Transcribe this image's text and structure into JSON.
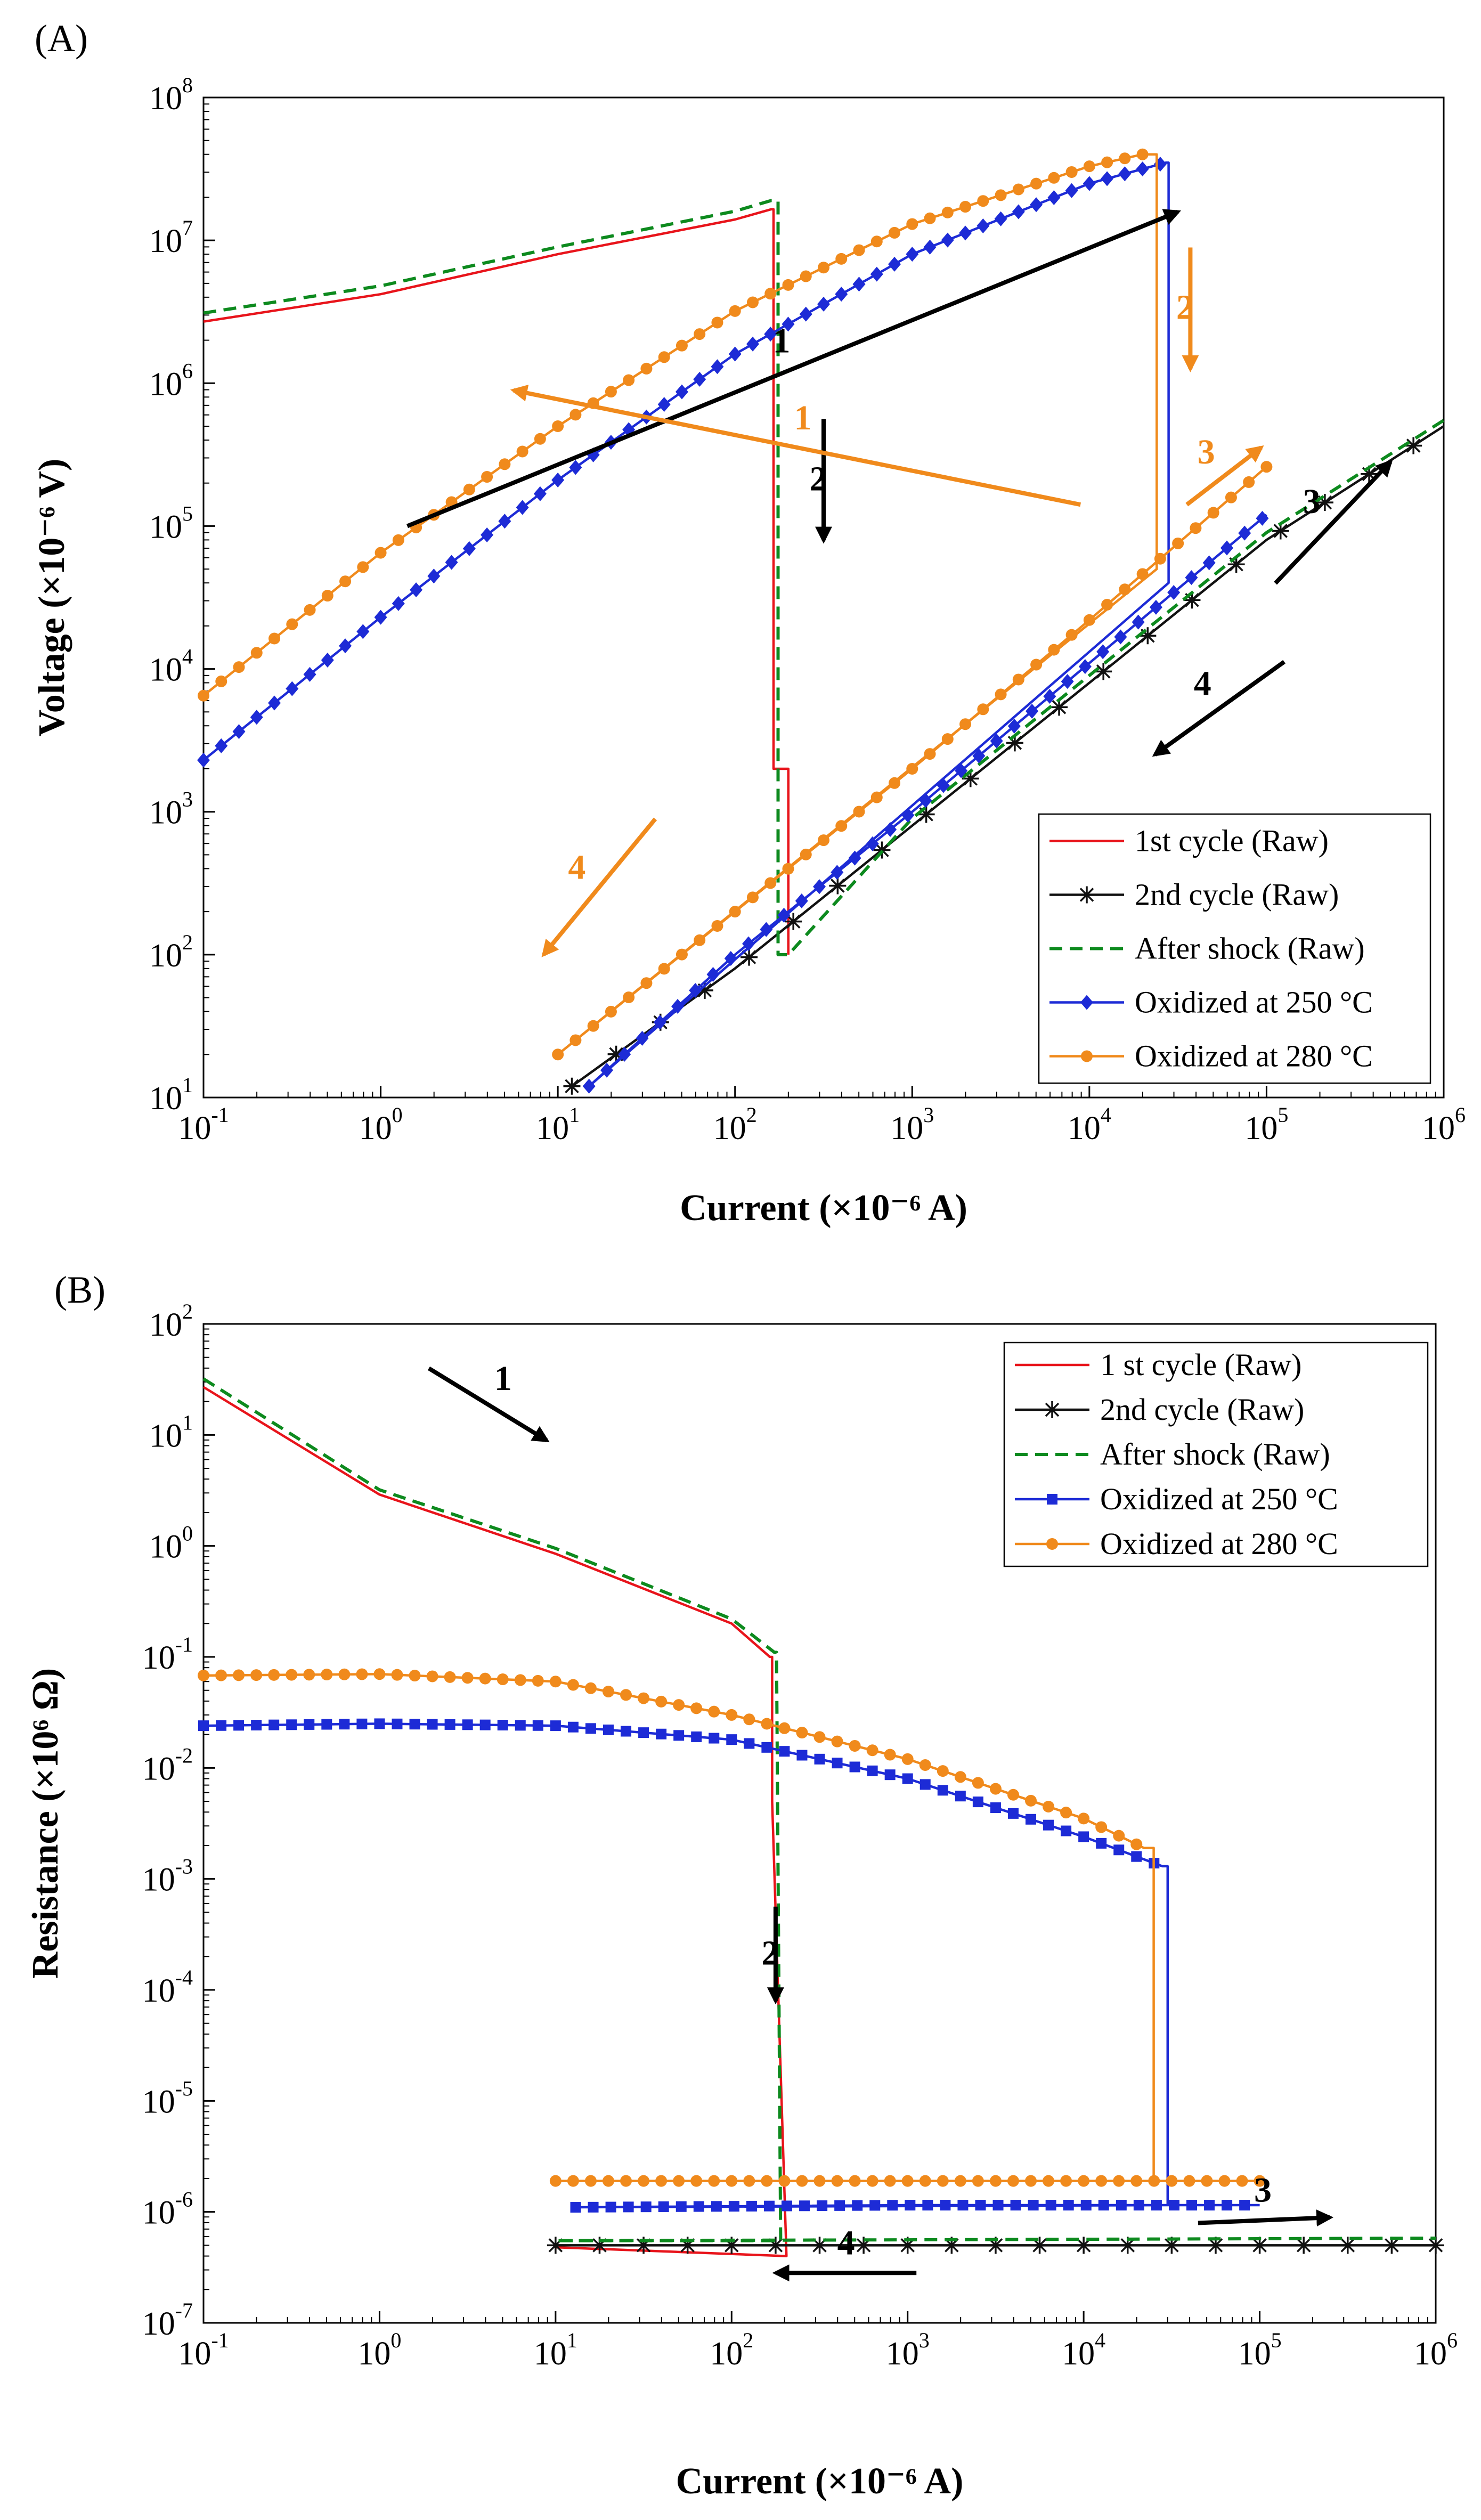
{
  "chart_data": [
    {
      "panel": "(A)",
      "type": "line",
      "xlabel": "Current (×10⁻⁶ A)",
      "ylabel": "Voltage (×10⁻⁶ V)",
      "xscale": "log",
      "yscale": "log",
      "xlim_exp": [
        -1,
        6
      ],
      "ylim_exp": [
        1,
        8
      ],
      "x_ticks": [
        {
          "base": "10",
          "exp": "-1"
        },
        {
          "base": "10",
          "exp": "0"
        },
        {
          "base": "10",
          "exp": "1"
        },
        {
          "base": "10",
          "exp": "2"
        },
        {
          "base": "10",
          "exp": "3"
        },
        {
          "base": "10",
          "exp": "4"
        },
        {
          "base": "10",
          "exp": "5"
        },
        {
          "base": "10",
          "exp": "6"
        }
      ],
      "y_ticks": [
        {
          "base": "10",
          "exp": "1"
        },
        {
          "base": "10",
          "exp": "2"
        },
        {
          "base": "10",
          "exp": "3"
        },
        {
          "base": "10",
          "exp": "4"
        },
        {
          "base": "10",
          "exp": "5"
        },
        {
          "base": "10",
          "exp": "6"
        },
        {
          "base": "10",
          "exp": "7"
        },
        {
          "base": "10",
          "exp": "8"
        }
      ],
      "legend_position": "bottom-right",
      "series": [
        {
          "key": "raw1",
          "name": "1st cycle (Raw)",
          "color": "#e8141b",
          "dash": "",
          "marker": "none",
          "points": [
            [
              0.1,
              2700000.0
            ],
            [
              1,
              4200000.0
            ],
            [
              10,
              8000000.0
            ],
            [
              100,
              14000000.0
            ],
            [
              160,
              16500000.0
            ],
            [
              165,
              16500000.0
            ],
            [
              165,
              2000
            ],
            [
              200,
              2000
            ],
            [
              200,
              100
            ]
          ]
        },
        {
          "key": "raw2",
          "name": "2nd cycle (Raw)",
          "color": "#111111",
          "dash": "",
          "marker": "star",
          "points": [
            [
              12,
              12
            ],
            [
              100,
              80
            ],
            [
              1000,
              800
            ],
            [
              10000,
              8000
            ],
            [
              100000,
              80000
            ],
            [
              1000000,
              500000.0
            ]
          ]
        },
        {
          "key": "shock",
          "name": "After shock (Raw)",
          "color": "#0d8a1e",
          "dash": "24,14",
          "marker": "none",
          "points": [
            [
              0.1,
              3100000.0
            ],
            [
              1,
              4800000.0
            ],
            [
              10,
              9000000.0
            ],
            [
              100,
              16000000.0
            ],
            [
              160,
              19000000.0
            ],
            [
              175,
              19000000.0
            ],
            [
              175,
              100
            ],
            [
              200,
              100
            ],
            [
              1000,
              900
            ],
            [
              10000,
              9000
            ],
            [
              100000,
              90000.0
            ],
            [
              1000000,
              550000.0
            ]
          ]
        },
        {
          "key": "ox250",
          "name": "Oxidized at 250 °C",
          "color": "#1d2bd6",
          "dash": "",
          "marker": "diamond",
          "points": [
            [
              0.1,
              2300
            ],
            [
              1,
              23000.0
            ],
            [
              10,
              210000.0
            ],
            [
              100,
              1600000.0
            ],
            [
              1000,
              8000000.0
            ],
            [
              10000,
              25000000.0
            ],
            [
              27000,
              35000000.0
            ],
            [
              28000,
              35000000.0
            ],
            [
              28000,
              40000.0
            ],
            [
              15,
              12
            ],
            [
              100,
              100
            ],
            [
              1000,
              1000
            ],
            [
              10000,
              11000.0
            ],
            [
              100000,
              120000.0
            ]
          ]
        },
        {
          "key": "ox280",
          "name": "Oxidized at 280 °C",
          "color": "#f08a1c",
          "dash": "",
          "marker": "circle",
          "points": [
            [
              0.1,
              6500
            ],
            [
              1,
              65000.0
            ],
            [
              10,
              500000.0
            ],
            [
              100,
              3200000.0
            ],
            [
              1000,
              13000000.0
            ],
            [
              10000,
              33000000.0
            ],
            [
              20000,
              40000000.0
            ],
            [
              24000,
              40000000.0
            ],
            [
              24000,
              50000.0
            ],
            [
              10,
              20
            ],
            [
              100,
              200
            ],
            [
              1000,
              2000
            ],
            [
              10000,
              22000.0
            ],
            [
              100000,
              260000.0
            ]
          ]
        }
      ],
      "annotations": [
        {
          "text": "1",
          "color": "#000000",
          "ax": 0.15,
          "ay": 5.0,
          "bx": 4.5,
          "by": 7.2
        },
        {
          "text": "2",
          "color": "#000000",
          "ax": 2.5,
          "ay": 5.75,
          "bx": 2.5,
          "by": 4.9
        },
        {
          "text": "3",
          "color": "#000000",
          "ax": 5.05,
          "ay": 4.6,
          "bx": 5.7,
          "by": 5.45
        },
        {
          "text": "4",
          "color": "#000000",
          "ax": 5.1,
          "ay": 4.05,
          "bx": 4.37,
          "by": 3.4
        },
        {
          "text": "1",
          "color": "#f08a1c",
          "ax": 3.95,
          "ay": 5.15,
          "bx": 0.75,
          "by": 5.95
        },
        {
          "text": "2",
          "color": "#f08a1c",
          "ax": 4.57,
          "ay": 6.95,
          "bx": 4.57,
          "by": 6.1
        },
        {
          "text": "3",
          "color": "#f08a1c",
          "ax": 4.55,
          "ay": 5.15,
          "bx": 4.97,
          "by": 5.55
        },
        {
          "text": "4",
          "color": "#f08a1c",
          "ax": 1.55,
          "ay": 2.95,
          "bx": 0.92,
          "by": 2.0
        }
      ]
    },
    {
      "panel": "(B)",
      "type": "line",
      "xlabel": "Current (×10⁻⁶ A)",
      "ylabel": "Resistance (×10⁶ Ω)",
      "xscale": "log",
      "yscale": "log",
      "xlim_exp": [
        -1,
        6
      ],
      "ylim_exp": [
        -7,
        2
      ],
      "x_ticks": [
        {
          "base": "10",
          "exp": "-1"
        },
        {
          "base": "10",
          "exp": "0"
        },
        {
          "base": "10",
          "exp": "1"
        },
        {
          "base": "10",
          "exp": "2"
        },
        {
          "base": "10",
          "exp": "3"
        },
        {
          "base": "10",
          "exp": "4"
        },
        {
          "base": "10",
          "exp": "5"
        },
        {
          "base": "10",
          "exp": "6"
        }
      ],
      "y_ticks": [
        {
          "base": "10",
          "exp": "-7"
        },
        {
          "base": "10",
          "exp": "-6"
        },
        {
          "base": "10",
          "exp": "-5"
        },
        {
          "base": "10",
          "exp": "-4"
        },
        {
          "base": "10",
          "exp": "-3"
        },
        {
          "base": "10",
          "exp": "-2"
        },
        {
          "base": "10",
          "exp": "-1"
        },
        {
          "base": "10",
          "exp": "0"
        },
        {
          "base": "10",
          "exp": "1"
        },
        {
          "base": "10",
          "exp": "2"
        }
      ],
      "legend_position": "top-right",
      "series": [
        {
          "key": "raw1",
          "name": "1 st cycle (Raw)",
          "color": "#e8141b",
          "dash": "",
          "marker": "none",
          "points": [
            [
              0.1,
              27
            ],
            [
              1,
              2.9
            ],
            [
              10,
              0.85
            ],
            [
              100,
              0.2
            ],
            [
              165,
              0.1
            ],
            [
              170,
              0.1
            ],
            [
              170,
              0.005
            ],
            [
              205,
              4e-07
            ],
            [
              10,
              4.8e-07
            ]
          ]
        },
        {
          "key": "raw2",
          "name": "2nd cycle (Raw)",
          "color": "#111111",
          "dash": "",
          "marker": "star",
          "points": [
            [
              10,
              5e-07
            ],
            [
              100,
              5e-07
            ],
            [
              1000,
              5e-07
            ],
            [
              10000,
              5e-07
            ],
            [
              100000,
              5e-07
            ],
            [
              1000000,
              5e-07
            ]
          ]
        },
        {
          "key": "shock",
          "name": "After shock (Raw)",
          "color": "#0d8a1e",
          "dash": "24,14",
          "marker": "none",
          "points": [
            [
              0.1,
              32
            ],
            [
              1,
              3.2
            ],
            [
              10,
              0.95
            ],
            [
              100,
              0.22
            ],
            [
              175,
              0.11
            ],
            [
              180,
              0.11
            ],
            [
              190,
              5.5e-07
            ],
            [
              10,
              5.5e-07
            ],
            [
              1000,
              5.6e-07
            ],
            [
              1000000,
              5.8e-07
            ]
          ]
        },
        {
          "key": "ox250",
          "name": "Oxidized at 250 °C",
          "color": "#1d2bd6",
          "dash": "",
          "marker": "square",
          "points": [
            [
              0.1,
              0.024
            ],
            [
              1,
              0.025
            ],
            [
              10,
              0.024
            ],
            [
              100,
              0.018
            ],
            [
              1000,
              0.008
            ],
            [
              10000,
              0.0024
            ],
            [
              28000,
              0.0013
            ],
            [
              30000,
              0.0013
            ],
            [
              30000,
              1.15e-06
            ],
            [
              13,
              1.1e-06
            ],
            [
              1000,
              1.15e-06
            ],
            [
              100000,
              1.15e-06
            ]
          ]
        },
        {
          "key": "ox280",
          "name": "Oxidized at 280 °C",
          "color": "#f08a1c",
          "dash": "",
          "marker": "circle",
          "points": [
            [
              0.1,
              0.068
            ],
            [
              1,
              0.07
            ],
            [
              10,
              0.06
            ],
            [
              100,
              0.03
            ],
            [
              1000,
              0.012
            ],
            [
              10000,
              0.0035
            ],
            [
              22000,
              0.0019
            ],
            [
              25000,
              0.0019
            ],
            [
              25000,
              1.9e-06
            ],
            [
              10,
              1.9e-06
            ],
            [
              1000,
              1.9e-06
            ],
            [
              100000,
              1.9e-06
            ]
          ]
        }
      ],
      "annotations": [
        {
          "text": "1",
          "color": "#000000",
          "ax": 0.28,
          "ay": 1.6,
          "bx": 0.95,
          "by": 0.95
        },
        {
          "text": "2",
          "color": "#000000",
          "ax": 2.25,
          "ay": -3.25,
          "bx": 2.25,
          "by": -4.1
        },
        {
          "text": "3",
          "color": "#000000",
          "ax": 4.65,
          "ay": -6.1,
          "bx": 5.4,
          "by": -6.05
        },
        {
          "text": "4",
          "color": "#000000",
          "ax": 3.05,
          "ay": -6.55,
          "bx": 2.25,
          "by": -6.55
        }
      ]
    }
  ]
}
